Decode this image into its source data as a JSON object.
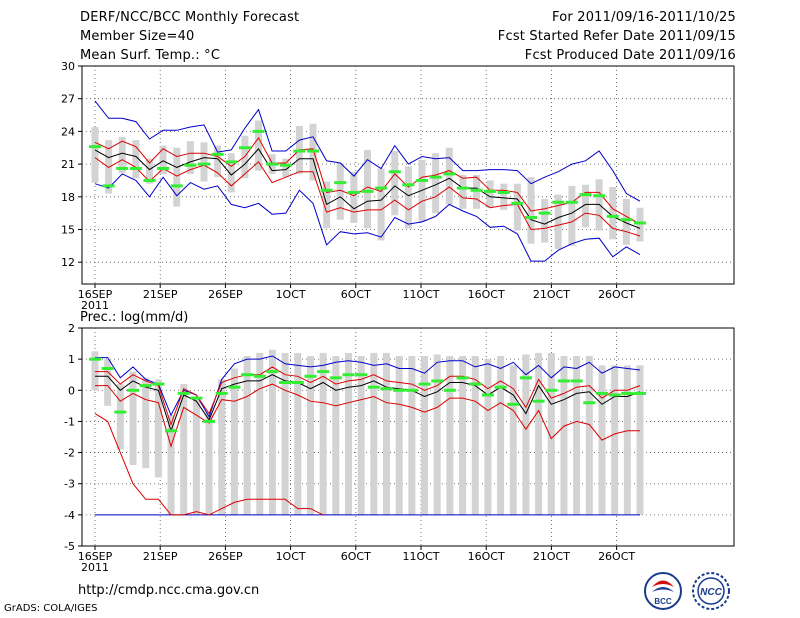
{
  "header": {
    "title": "DERF/NCC/BCC Monthly Forecast",
    "member_size": "Member Size=40",
    "variable": "Mean Surf. Temp.: °C",
    "period": "For 2011/09/16-2011/10/25",
    "started": "Fcst Started Refer Date 2011/09/15",
    "produced": "Fcst Produced Date 2011/09/16"
  },
  "footer": {
    "url": "http://cmdp.ncc.cma.gov.cn",
    "credit": "GrADS: COLA/IGES",
    "logo1": "BCC",
    "logo2": "NCC"
  },
  "colors": {
    "median": "#000000",
    "quartile": "#dd0000",
    "extreme": "#0000cc",
    "bar": "#d3d3d3",
    "mark": "#33ee33"
  },
  "chart_data": [
    {
      "type": "line",
      "title": "Mean Surf. Temp.: °C",
      "xlabels": [
        "16SEP",
        "21SEP",
        "26SEP",
        "1OCT",
        "6OCT",
        "11OCT",
        "16OCT",
        "21OCT",
        "26OCT"
      ],
      "xyear": "2011",
      "ylim": [
        10,
        30
      ],
      "yticks": [
        30,
        27,
        24,
        21,
        18,
        15,
        12
      ],
      "median": [
        22.3,
        21.6,
        22.0,
        21.7,
        20.5,
        21.3,
        20.7,
        21.2,
        21.6,
        21.5,
        20.0,
        21.0,
        22.4,
        20.4,
        20.5,
        21.5,
        21.5,
        17.3,
        18.0,
        16.9,
        17.6,
        17.7,
        19.0,
        18.1,
        18.6,
        19.1,
        19.7,
        18.8,
        18.8,
        18.0,
        17.9,
        17.8,
        15.9,
        15.5,
        16.1,
        16.5,
        17.3,
        17.3,
        16.2,
        15.6,
        15.1
      ],
      "q_upper": [
        23.0,
        22.4,
        23.1,
        22.6,
        21.1,
        22.4,
        21.7,
        22.0,
        22.0,
        21.7,
        20.8,
        21.7,
        23.4,
        21.1,
        21.1,
        22.3,
        22.4,
        18.4,
        18.6,
        18.1,
        18.9,
        18.5,
        20.1,
        18.9,
        19.8,
        20.0,
        20.4,
        19.7,
        19.8,
        18.6,
        18.6,
        18.4,
        16.7,
        16.9,
        17.2,
        17.5,
        18.4,
        18.4,
        16.9,
        16.2,
        15.5
      ],
      "q_lower": [
        21.6,
        20.7,
        21.4,
        20.7,
        19.4,
        20.6,
        19.9,
        20.5,
        20.9,
        20.2,
        19.0,
        20.1,
        21.2,
        19.3,
        19.8,
        20.3,
        20.3,
        16.6,
        17.0,
        16.6,
        16.8,
        16.8,
        17.7,
        16.8,
        17.6,
        18.0,
        18.9,
        17.9,
        17.8,
        17.0,
        17.2,
        17.3,
        15.0,
        15.1,
        15.4,
        15.7,
        16.5,
        16.3,
        15.1,
        14.8,
        14.4
      ],
      "max": [
        26.8,
        25.2,
        25.2,
        24.9,
        23.3,
        24.1,
        24.1,
        24.4,
        24.6,
        22.1,
        22.3,
        24.3,
        26.0,
        22.2,
        22.2,
        23.2,
        23.5,
        21.3,
        21.1,
        19.9,
        21.4,
        20.6,
        22.7,
        21.0,
        21.7,
        21.5,
        21.6,
        20.4,
        20.4,
        20.5,
        20.5,
        20.4,
        19.2,
        19.8,
        20.3,
        21.0,
        21.3,
        22.2,
        20.4,
        18.3,
        17.6
      ],
      "min": [
        19.2,
        18.8,
        20.1,
        19.5,
        18.0,
        19.8,
        18.1,
        19.3,
        18.7,
        19.0,
        17.3,
        17.0,
        17.4,
        16.4,
        16.5,
        18.6,
        17.4,
        13.6,
        14.8,
        14.6,
        14.7,
        14.3,
        16.1,
        15.5,
        15.7,
        16.2,
        17.3,
        16.7,
        16.2,
        15.2,
        15.3,
        14.6,
        12.1,
        12.1,
        13.1,
        13.7,
        14.1,
        14.2,
        12.5,
        13.4,
        12.7
      ],
      "bar_top": [
        24.4,
        23.2,
        23.5,
        23.2,
        21.5,
        22.7,
        22.5,
        23.1,
        23.0,
        22.7,
        22.0,
        23.6,
        25.0,
        21.9,
        21.5,
        24.5,
        24.7,
        19.4,
        21.1,
        20.3,
        22.3,
        20.6,
        22.2,
        20.8,
        21.4,
        22.0,
        22.5,
        20.0,
        20.0,
        19.5,
        19.2,
        19.2,
        19.8,
        17.8,
        18.2,
        19.0,
        19.1,
        19.6,
        18.9,
        17.8,
        17.0
      ],
      "bar_bottom": [
        19.3,
        18.3,
        20.2,
        19.7,
        19.2,
        20.1,
        17.1,
        20.1,
        19.4,
        19.8,
        18.4,
        19.7,
        20.4,
        20.1,
        19.8,
        20.1,
        19.5,
        15.1,
        15.9,
        15.6,
        15.1,
        14.0,
        16.3,
        15.1,
        15.7,
        16.5,
        17.3,
        16.9,
        16.9,
        17.0,
        16.8,
        14.9,
        13.7,
        13.8,
        13.2,
        13.5,
        15.2,
        14.9,
        14.1,
        13.6,
        13.9
      ],
      "mark": [
        22.6,
        19.0,
        20.6,
        20.6,
        19.5,
        20.6,
        19.0,
        20.9,
        21.0,
        21.9,
        21.2,
        22.5,
        24.0,
        21.0,
        20.9,
        22.2,
        22.2,
        18.6,
        19.3,
        18.4,
        18.5,
        18.8,
        20.3,
        19.1,
        19.5,
        19.8,
        20.1,
        18.8,
        18.6,
        18.5,
        18.4,
        17.4,
        16.1,
        16.5,
        17.5,
        17.5,
        18.2,
        18.1,
        16.2,
        15.9,
        15.6
      ]
    },
    {
      "type": "line",
      "title": "Prec.: log(mm/d)",
      "xlabels": [
        "16SEP",
        "21SEP",
        "26SEP",
        "1OCT",
        "6OCT",
        "11OCT",
        "16OCT",
        "21OCT",
        "26OCT"
      ],
      "xyear": "2011",
      "ylim": [
        -5,
        2
      ],
      "yticks": [
        2,
        1,
        0,
        -1,
        -2,
        -3,
        -4,
        -5
      ],
      "median": [
        0.45,
        0.45,
        0.0,
        0.3,
        0.1,
        0.0,
        -1.3,
        -0.15,
        -0.35,
        -0.95,
        0.05,
        0.2,
        0.3,
        0.3,
        0.5,
        0.3,
        0.25,
        0.05,
        0.25,
        0.0,
        0.1,
        0.15,
        0.3,
        0.1,
        0.05,
        0.0,
        -0.2,
        -0.05,
        0.25,
        0.25,
        0.15,
        -0.15,
        0.1,
        -0.15,
        -0.75,
        0.15,
        -0.45,
        -0.3,
        -0.1,
        -0.05,
        -0.45,
        -0.2,
        -0.2,
        -0.05
      ],
      "q_upper": [
        0.6,
        0.6,
        0.2,
        0.5,
        0.3,
        0.15,
        -1.1,
        0.05,
        -0.15,
        -0.75,
        0.25,
        0.4,
        0.5,
        0.5,
        0.75,
        0.5,
        0.45,
        0.25,
        0.45,
        0.2,
        0.3,
        0.35,
        0.5,
        0.3,
        0.25,
        0.2,
        0.0,
        0.15,
        0.45,
        0.45,
        0.35,
        0.05,
        0.3,
        0.05,
        -0.55,
        0.35,
        -0.25,
        -0.1,
        0.1,
        0.15,
        -0.25,
        0.0,
        0.0,
        0.15
      ],
      "q_lower": [
        0.15,
        0.15,
        -0.35,
        -0.1,
        -0.3,
        -0.4,
        -1.8,
        -0.55,
        -0.8,
        -1.05,
        -0.3,
        -0.35,
        -0.2,
        0.05,
        0.2,
        0.0,
        -0.15,
        -0.35,
        -0.4,
        -0.5,
        -0.4,
        -0.3,
        -0.2,
        -0.4,
        -0.45,
        -0.55,
        -0.7,
        -0.55,
        -0.25,
        -0.25,
        -0.35,
        -0.65,
        -0.4,
        -0.65,
        -1.25,
        -0.65,
        -1.55,
        -1.15,
        -1.0,
        -1.1,
        -1.6,
        -1.4,
        -1.3,
        -1.3
      ],
      "q_lower_start": -0.75,
      "low_pct": [
        -0.75,
        -1.0,
        -2.0,
        -3.0,
        -3.5,
        -3.5,
        -4.0,
        -4.0,
        -3.9,
        -4.0,
        -3.8,
        -3.6,
        -3.5,
        -3.5,
        -3.5,
        -3.5,
        -3.8,
        -3.8,
        -4.0
      ],
      "max": [
        1.05,
        1.05,
        0.4,
        0.75,
        0.35,
        0.2,
        -0.8,
        0.0,
        -0.15,
        -0.85,
        0.35,
        0.85,
        1.0,
        1.0,
        1.1,
        0.85,
        0.8,
        0.75,
        0.8,
        0.9,
        0.95,
        0.9,
        0.8,
        0.85,
        0.7,
        0.7,
        0.55,
        0.9,
        0.95,
        0.95,
        0.75,
        0.85,
        0.7,
        0.9,
        0.5,
        0.8,
        0.4,
        0.75,
        0.7,
        0.9,
        0.55,
        0.75,
        0.7,
        0.65
      ],
      "min_value": -4.0,
      "bar_top": [
        1.25,
        1.0,
        0.2,
        0.6,
        0.4,
        0.35,
        -0.8,
        0.2,
        -0.2,
        -0.7,
        0.35,
        0.7,
        1.1,
        1.2,
        1.3,
        1.2,
        1.2,
        1.1,
        1.2,
        1.1,
        1.2,
        1.1,
        1.2,
        1.2,
        1.1,
        1.1,
        1.1,
        1.15,
        1.1,
        1.1,
        1.1,
        1.0,
        1.1,
        0.8,
        1.15,
        1.2,
        1.2,
        1.1,
        1.1,
        1.1,
        0.8,
        0.8,
        0.8,
        0.8
      ],
      "bar_bottom": [
        0.0,
        -0.5,
        -1.9,
        -2.4,
        -2.5,
        -2.8,
        -4.0,
        -4.0,
        -4.0,
        -4.0,
        -4.0,
        -4.0,
        -4.0,
        -4.0,
        -4.0,
        -4.0,
        -4.0,
        -4.0,
        -4.0,
        -4.0,
        -4.0,
        -4.0,
        -4.0,
        -4.0,
        -4.0,
        -4.0,
        -4.0,
        -4.0,
        -4.0,
        -4.0,
        -4.0,
        -4.0,
        -4.0,
        -4.0,
        -4.0,
        -4.0,
        -4.0,
        -4.0,
        -4.0,
        -4.0,
        -4.0,
        -4.0,
        -4.0,
        -4.0
      ],
      "mark": [
        1.0,
        0.7,
        -0.7,
        0.0,
        0.15,
        0.2,
        -1.3,
        -0.1,
        -0.25,
        -1.0,
        -0.1,
        0.1,
        0.5,
        0.45,
        0.6,
        0.25,
        0.25,
        0.45,
        0.6,
        0.4,
        0.5,
        0.5,
        0.1,
        0.05,
        0.0,
        0.0,
        0.2,
        0.3,
        0.0,
        0.4,
        0.2,
        -0.15,
        0.1,
        -0.45,
        0.4,
        -0.35,
        0.0,
        0.3,
        0.3,
        -0.4,
        -0.1,
        -0.15,
        -0.1,
        -0.1
      ]
    }
  ]
}
